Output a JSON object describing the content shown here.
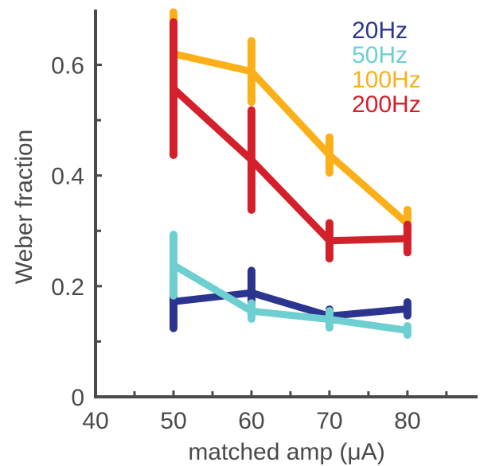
{
  "chart_data": {
    "type": "line",
    "title": "",
    "xlabel": "matched amp (μA)",
    "ylabel": "Weber fraction",
    "xlim": [
      40,
      89
    ],
    "ylim": [
      0,
      0.7
    ],
    "xticks": [
      40,
      50,
      60,
      70,
      80
    ],
    "xtick_labels": [
      "40",
      "50",
      "60",
      "70",
      "80"
    ],
    "yticks": [
      0,
      0.2,
      0.4,
      0.6
    ],
    "ytick_labels": [
      "0",
      "0.2",
      "0.4",
      "0.6"
    ],
    "grid": false,
    "legend_position": "top-right",
    "x": [
      50,
      60,
      70,
      80
    ],
    "series": [
      {
        "name": "20Hz",
        "color": "#2b3590",
        "values": [
          0.172,
          0.188,
          0.146,
          0.159
        ],
        "error": [
          0.048,
          0.04,
          0.012,
          0.012
        ]
      },
      {
        "name": "50Hz",
        "color": "#6ecfd1",
        "values": [
          0.238,
          0.155,
          0.14,
          0.12
        ],
        "error": [
          0.055,
          0.014,
          0.015,
          0.008
        ]
      },
      {
        "name": "100Hz",
        "color": "#fbb01a",
        "values": [
          0.62,
          0.588,
          0.437,
          0.313
        ],
        "error": [
          0.075,
          0.055,
          0.032,
          0.025
        ]
      },
      {
        "name": "200Hz",
        "color": "#d4202a",
        "values": [
          0.557,
          0.428,
          0.282,
          0.286
        ],
        "error": [
          0.12,
          0.09,
          0.032,
          0.025
        ]
      }
    ]
  }
}
